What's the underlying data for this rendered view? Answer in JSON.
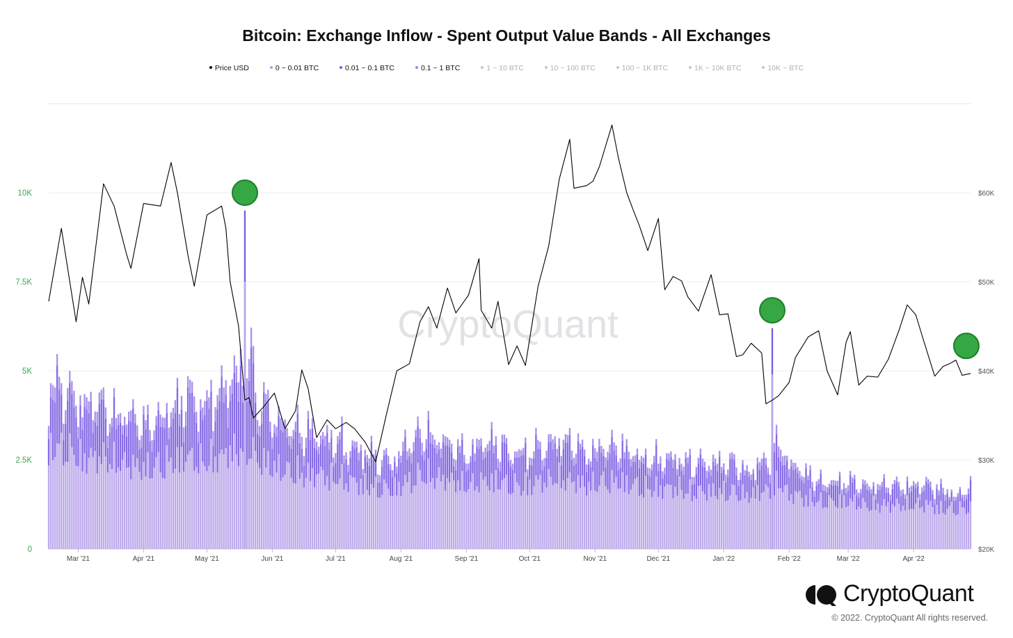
{
  "title": "Bitcoin: Exchange Inflow - Spent Output Value Bands - All Exchanges",
  "legend": [
    {
      "label": "Price USD",
      "color": "#000000",
      "active": true
    },
    {
      "label": "0 ~ 0.01 BTC",
      "color": "#b39ce8",
      "active": true
    },
    {
      "label": "0.01 ~ 0.1 BTC",
      "color": "#7a5ce0",
      "active": true
    },
    {
      "label": "0.1 ~ 1 BTC",
      "color": "#9b80ea",
      "active": true
    },
    {
      "label": "1 ~ 10 BTC",
      "color": "#c6c6cc",
      "active": false
    },
    {
      "label": "10 ~ 100 BTC",
      "color": "#c6c6cc",
      "active": false
    },
    {
      "label": "100 ~ 1K BTC",
      "color": "#c6c6cc",
      "active": false
    },
    {
      "label": "1K ~ 10K BTC",
      "color": "#c6c6cc",
      "active": false
    },
    {
      "label": "10K ~ BTC",
      "color": "#c6c6cc",
      "active": false
    }
  ],
  "watermark": "CryptoQuant",
  "brand": "CryptoQuant",
  "copyright": "© 2022. CryptoQuant All rights reserved.",
  "colors": {
    "band_0_001": "#b9a5ea",
    "band_001_01": "#7b5de2",
    "band_01_1": "#a58cec",
    "price": "#000000",
    "marker": "#35a843",
    "marker_stroke": "#1f7d2c",
    "left_axis": "#3aa655",
    "right_axis": "#555555"
  },
  "chart_data": {
    "type": "bar",
    "stacked": true,
    "x_range": [
      "2021-02-15",
      "2022-04-28"
    ],
    "x_ticks": [
      {
        "label": "Mar '21",
        "date": "2021-03-01"
      },
      {
        "label": "Apr '21",
        "date": "2021-04-01"
      },
      {
        "label": "May '21",
        "date": "2021-05-01"
      },
      {
        "label": "Jun '21",
        "date": "2021-06-01"
      },
      {
        "label": "Jul '21",
        "date": "2021-07-01"
      },
      {
        "label": "Aug '21",
        "date": "2021-08-01"
      },
      {
        "label": "Sep '21",
        "date": "2021-09-01"
      },
      {
        "label": "Oct '21",
        "date": "2021-10-01"
      },
      {
        "label": "Nov '21",
        "date": "2021-11-01"
      },
      {
        "label": "Dec '21",
        "date": "2021-12-01"
      },
      {
        "label": "Jan '22",
        "date": "2022-01-01"
      },
      {
        "label": "Feb '22",
        "date": "2022-02-01"
      },
      {
        "label": "Mar '22",
        "date": "2022-03-01"
      },
      {
        "label": "Apr '22",
        "date": "2022-04-01"
      }
    ],
    "y_left": {
      "ylim": [
        0,
        10000
      ],
      "ticks": [
        {
          "value": 0,
          "label": "0"
        },
        {
          "value": 2500,
          "label": "2.5K"
        },
        {
          "value": 5000,
          "label": "5K"
        },
        {
          "value": 7500,
          "label": "7.5K"
        },
        {
          "value": 10000,
          "label": "10K"
        }
      ]
    },
    "y_right": {
      "ylim": [
        20000,
        60000
      ],
      "ticks": [
        {
          "value": 20000,
          "label": "$20K"
        },
        {
          "value": 30000,
          "label": "$30K"
        },
        {
          "value": 40000,
          "label": "$40K"
        },
        {
          "value": 50000,
          "label": "$50K"
        },
        {
          "value": 60000,
          "label": "$60K"
        }
      ]
    },
    "grid": true,
    "legend_position": "top",
    "inflow_weekly": {
      "week_start": [
        "2021-02-15",
        "2021-02-22",
        "2021-03-01",
        "2021-03-08",
        "2021-03-15",
        "2021-03-22",
        "2021-03-29",
        "2021-04-05",
        "2021-04-12",
        "2021-04-19",
        "2021-04-26",
        "2021-05-03",
        "2021-05-10",
        "2021-05-17",
        "2021-05-24",
        "2021-05-31",
        "2021-06-07",
        "2021-06-14",
        "2021-06-21",
        "2021-06-28",
        "2021-07-05",
        "2021-07-12",
        "2021-07-19",
        "2021-07-26",
        "2021-08-02",
        "2021-08-09",
        "2021-08-16",
        "2021-08-23",
        "2021-08-30",
        "2021-09-06",
        "2021-09-13",
        "2021-09-20",
        "2021-09-27",
        "2021-10-04",
        "2021-10-11",
        "2021-10-18",
        "2021-10-25",
        "2021-11-01",
        "2021-11-08",
        "2021-11-15",
        "2021-11-22",
        "2021-11-29",
        "2021-12-06",
        "2021-12-13",
        "2021-12-20",
        "2021-12-27",
        "2022-01-03",
        "2022-01-10",
        "2022-01-17",
        "2022-01-24",
        "2022-01-31",
        "2022-02-07",
        "2022-02-14",
        "2022-02-21",
        "2022-02-28",
        "2022-03-07",
        "2022-03-14",
        "2022-03-21",
        "2022-03-28",
        "2022-04-04",
        "2022-04-11",
        "2022-04-18",
        "2022-04-25"
      ],
      "series": [
        {
          "name": "0 ~ 0.01 BTC",
          "values": [
            3000,
            2900,
            2700,
            2700,
            2600,
            2500,
            2400,
            2500,
            2600,
            2700,
            2600,
            2700,
            2900,
            3000,
            2600,
            2400,
            2300,
            2200,
            2200,
            2100,
            2000,
            1900,
            1800,
            1800,
            2000,
            2200,
            2100,
            2000,
            1900,
            2000,
            2000,
            1900,
            1900,
            2000,
            2100,
            2000,
            1900,
            2000,
            2000,
            1900,
            1800,
            1800,
            1800,
            1700,
            1700,
            1700,
            1700,
            1600,
            1700,
            1900,
            1600,
            1500,
            1400,
            1400,
            1400,
            1300,
            1300,
            1300,
            1300,
            1300,
            1200,
            1200,
            1200
          ]
        },
        {
          "name": "0.01 ~ 0.1 BTC",
          "values": [
            1300,
            1200,
            1100,
            1100,
            1000,
            1000,
            900,
            1000,
            1100,
            1300,
            1200,
            1300,
            1500,
            1800,
            1200,
            1000,
            900,
            900,
            800,
            800,
            700,
            700,
            600,
            600,
            800,
            900,
            800,
            700,
            700,
            800,
            800,
            700,
            700,
            700,
            800,
            800,
            700,
            700,
            700,
            700,
            600,
            600,
            600,
            600,
            600,
            600,
            600,
            500,
            600,
            800,
            600,
            500,
            400,
            400,
            400,
            400,
            400,
            400,
            400,
            400,
            400,
            300,
            400
          ]
        },
        {
          "name": "0.1 ~ 1 BTC",
          "values": [
            400,
            400,
            350,
            350,
            300,
            300,
            300,
            300,
            350,
            400,
            350,
            400,
            500,
            600,
            350,
            300,
            300,
            300,
            250,
            250,
            200,
            200,
            200,
            200,
            250,
            300,
            250,
            250,
            200,
            250,
            250,
            200,
            200,
            250,
            250,
            250,
            200,
            250,
            250,
            200,
            200,
            200,
            200,
            200,
            200,
            200,
            200,
            150,
            200,
            300,
            200,
            150,
            150,
            150,
            150,
            150,
            150,
            150,
            150,
            150,
            150,
            100,
            150
          ]
        }
      ],
      "spikes": [
        {
          "date": "2021-05-19",
          "total": 9500
        },
        {
          "date": "2022-01-24",
          "total": 6200
        }
      ]
    },
    "price_usd": [
      [
        "2021-02-15",
        47800
      ],
      [
        "2021-02-21",
        56000
      ],
      [
        "2021-02-28",
        45500
      ],
      [
        "2021-03-03",
        50500
      ],
      [
        "2021-03-06",
        47500
      ],
      [
        "2021-03-13",
        61000
      ],
      [
        "2021-03-18",
        58500
      ],
      [
        "2021-03-24",
        53000
      ],
      [
        "2021-03-26",
        51500
      ],
      [
        "2021-04-01",
        58800
      ],
      [
        "2021-04-09",
        58500
      ],
      [
        "2021-04-14",
        63400
      ],
      [
        "2021-04-17",
        60000
      ],
      [
        "2021-04-22",
        53000
      ],
      [
        "2021-04-25",
        49500
      ],
      [
        "2021-05-01",
        57500
      ],
      [
        "2021-05-08",
        58500
      ],
      [
        "2021-05-10",
        56000
      ],
      [
        "2021-05-12",
        50000
      ],
      [
        "2021-05-16",
        45000
      ],
      [
        "2021-05-19",
        36700
      ],
      [
        "2021-05-21",
        37000
      ],
      [
        "2021-05-23",
        34700
      ],
      [
        "2021-05-28",
        36000
      ],
      [
        "2021-06-02",
        37500
      ],
      [
        "2021-06-07",
        33500
      ],
      [
        "2021-06-12",
        35500
      ],
      [
        "2021-06-15",
        40100
      ],
      [
        "2021-06-18",
        38000
      ],
      [
        "2021-06-22",
        32500
      ],
      [
        "2021-06-27",
        34500
      ],
      [
        "2021-07-01",
        33500
      ],
      [
        "2021-07-06",
        34200
      ],
      [
        "2021-07-10",
        33500
      ],
      [
        "2021-07-15",
        32000
      ],
      [
        "2021-07-20",
        29800
      ],
      [
        "2021-07-25",
        35000
      ],
      [
        "2021-07-30",
        40000
      ],
      [
        "2021-08-05",
        40800
      ],
      [
        "2021-08-10",
        45500
      ],
      [
        "2021-08-14",
        47200
      ],
      [
        "2021-08-18",
        44800
      ],
      [
        "2021-08-23",
        49300
      ],
      [
        "2021-08-27",
        46500
      ],
      [
        "2021-09-02",
        48500
      ],
      [
        "2021-09-07",
        52600
      ],
      [
        "2021-09-08",
        46800
      ],
      [
        "2021-09-13",
        44800
      ],
      [
        "2021-09-16",
        47800
      ],
      [
        "2021-09-21",
        40700
      ],
      [
        "2021-09-25",
        42800
      ],
      [
        "2021-09-29",
        40600
      ],
      [
        "2021-10-05",
        49500
      ],
      [
        "2021-10-10",
        54000
      ],
      [
        "2021-10-15",
        61500
      ],
      [
        "2021-10-20",
        66000
      ],
      [
        "2021-10-22",
        60500
      ],
      [
        "2021-10-28",
        60800
      ],
      [
        "2021-10-31",
        61300
      ],
      [
        "2021-11-03",
        62900
      ],
      [
        "2021-11-09",
        67600
      ],
      [
        "2021-11-12",
        64000
      ],
      [
        "2021-11-16",
        60000
      ],
      [
        "2021-11-19",
        58100
      ],
      [
        "2021-11-22",
        56300
      ],
      [
        "2021-11-26",
        53500
      ],
      [
        "2021-12-01",
        57100
      ],
      [
        "2021-12-04",
        49100
      ],
      [
        "2021-12-08",
        50600
      ],
      [
        "2021-12-12",
        50100
      ],
      [
        "2021-12-15",
        48300
      ],
      [
        "2021-12-20",
        46700
      ],
      [
        "2021-12-26",
        50800
      ],
      [
        "2021-12-30",
        46300
      ],
      [
        "2022-01-03",
        46400
      ],
      [
        "2022-01-07",
        41600
      ],
      [
        "2022-01-10",
        41800
      ],
      [
        "2022-01-14",
        43100
      ],
      [
        "2022-01-19",
        42000
      ],
      [
        "2022-01-21",
        36300
      ],
      [
        "2022-01-24",
        36700
      ],
      [
        "2022-01-27",
        37200
      ],
      [
        "2022-02-01",
        38700
      ],
      [
        "2022-02-04",
        41500
      ],
      [
        "2022-02-10",
        43800
      ],
      [
        "2022-02-15",
        44500
      ],
      [
        "2022-02-19",
        40000
      ],
      [
        "2022-02-24",
        37300
      ],
      [
        "2022-02-28",
        43200
      ],
      [
        "2022-03-02",
        44400
      ],
      [
        "2022-03-06",
        38400
      ],
      [
        "2022-03-10",
        39400
      ],
      [
        "2022-03-15",
        39300
      ],
      [
        "2022-03-20",
        41300
      ],
      [
        "2022-03-25",
        44500
      ],
      [
        "2022-03-29",
        47400
      ],
      [
        "2022-04-02",
        46300
      ],
      [
        "2022-04-06",
        43200
      ],
      [
        "2022-04-11",
        39400
      ],
      [
        "2022-04-15",
        40500
      ],
      [
        "2022-04-18",
        40800
      ],
      [
        "2022-04-21",
        41200
      ],
      [
        "2022-04-24",
        39500
      ],
      [
        "2022-04-28",
        39700
      ]
    ],
    "highlight_markers": [
      {
        "date": "2021-05-19",
        "value": 10000,
        "axis": "left"
      },
      {
        "date": "2022-01-24",
        "value": 6700,
        "axis": "left"
      },
      {
        "date": "2022-04-26",
        "value": 5700,
        "axis": "left"
      }
    ]
  }
}
